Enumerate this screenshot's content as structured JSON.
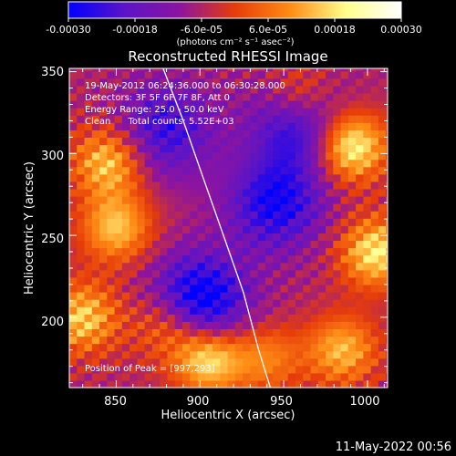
{
  "colorbar": {
    "ticks": [
      "-0.00030",
      "-0.00018",
      "-6.0e-05",
      "6.0e-05",
      "0.00018",
      "0.00030"
    ],
    "unit_label": "(photons cm⁻² s⁻¹ asec⁻²)",
    "range": [
      -0.0003,
      0.0003
    ],
    "colors": [
      "#0000ff",
      "#5a14c8",
      "#8c14a0",
      "#e63c0a",
      "#ff8c14",
      "#ffff8c",
      "#ffffff"
    ]
  },
  "chart_data": {
    "type": "heatmap",
    "title": "Reconstructed RHESSI Image",
    "xlabel": "Heliocentric X (arcsec)",
    "ylabel": "Heliocentric Y (arcsec)",
    "xlim": [
      822,
      1012
    ],
    "ylim": [
      157,
      352
    ],
    "x_ticks": [
      850,
      900,
      950,
      1000
    ],
    "y_ticks": [
      200,
      250,
      300,
      350
    ],
    "limb_points": [
      [
        878,
        352
      ],
      [
        890,
        320
      ],
      [
        902,
        285
      ],
      [
        914,
        250
      ],
      [
        926,
        215
      ],
      [
        935,
        180
      ],
      [
        942,
        157
      ]
    ],
    "hotspots": [
      {
        "x": 990,
        "y": 305,
        "value": 0.0003
      },
      {
        "x": 845,
        "y": 295,
        "value": 0.00022
      },
      {
        "x": 850,
        "y": 255,
        "value": 0.00021
      },
      {
        "x": 905,
        "y": 175,
        "value": 0.00026
      },
      {
        "x": 1005,
        "y": 240,
        "value": 0.00025
      },
      {
        "x": 960,
        "y": 335,
        "value": 0.00018
      },
      {
        "x": 985,
        "y": 180,
        "value": 0.0002
      },
      {
        "x": 830,
        "y": 200,
        "value": 0.00022
      },
      {
        "x": 880,
        "y": 195,
        "value": 0.00015
      },
      {
        "x": 940,
        "y": 175,
        "value": 0.00014
      }
    ],
    "coldspots": [
      {
        "x": 900,
        "y": 210,
        "value": -0.00028
      },
      {
        "x": 945,
        "y": 270,
        "value": -0.00022
      },
      {
        "x": 960,
        "y": 320,
        "value": -0.00024
      },
      {
        "x": 880,
        "y": 315,
        "value": -0.00018
      }
    ],
    "info_lines": [
      "19-May-2012 06:24:36.000 to 06:30:28.000",
      "Detectors: 3F 5F 6F 7F 8F, Att 0",
      "Energy Range: 25.0 - 50.0 keV",
      "Clean      Total counts: 5.52E+03"
    ],
    "peak_label": "Position of Peak = [997,293]"
  },
  "footer": {
    "timestamp": "11-May-2022 00:56"
  }
}
